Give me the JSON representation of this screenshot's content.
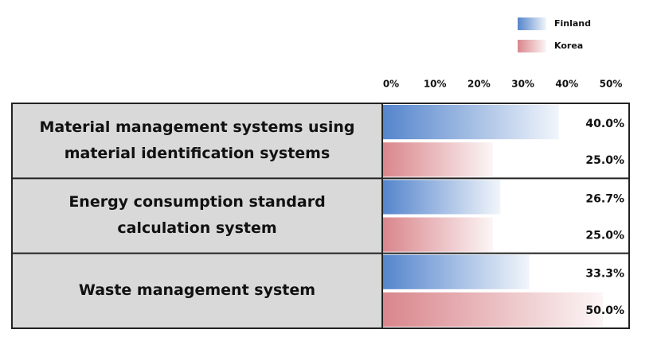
{
  "chart_data": {
    "type": "bar",
    "orientation": "horizontal",
    "categories": [
      "Material management systems using material identification systems",
      "Energy consumption standard calculation system",
      "Waste management system"
    ],
    "series": [
      {
        "name": "Finland",
        "color": "#5585cc",
        "values": [
          40.0,
          26.7,
          33.3
        ],
        "value_labels": [
          "40.0%",
          "26.7%",
          "33.3%"
        ]
      },
      {
        "name": "Korea",
        "color": "#d9868c",
        "values": [
          25.0,
          25.0,
          50.0
        ],
        "value_labels": [
          "25.0%",
          "25.0%",
          "50.0%"
        ]
      }
    ],
    "xlim": [
      0,
      50
    ],
    "xticks": [
      {
        "value": 0,
        "label": "0%"
      },
      {
        "value": 10,
        "label": "10%"
      },
      {
        "value": 20,
        "label": "20%"
      },
      {
        "value": 30,
        "label": "30%"
      },
      {
        "value": 40,
        "label": "40%"
      },
      {
        "value": 50,
        "label": "50%"
      }
    ],
    "legend": "top-right"
  }
}
